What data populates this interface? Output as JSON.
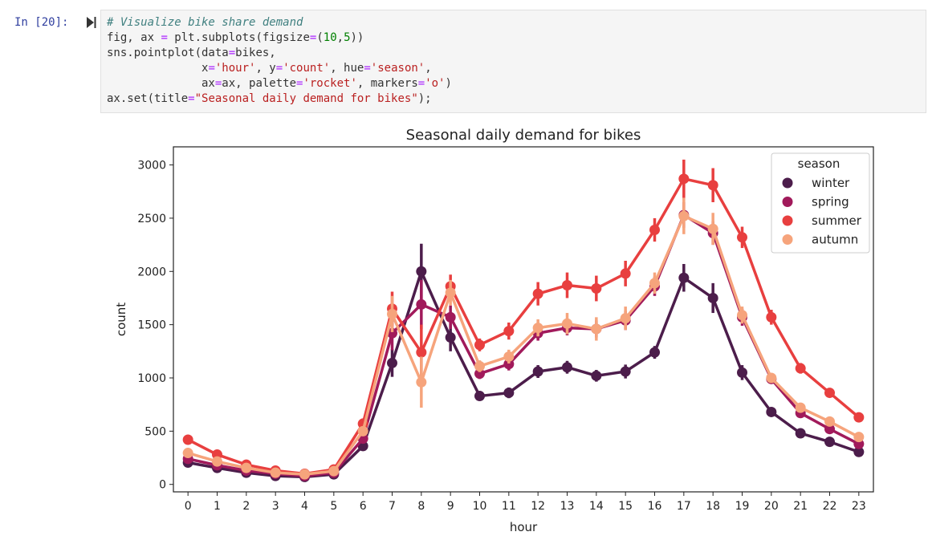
{
  "cell": {
    "prompt": "In [20]:",
    "code_lines": [
      [
        {
          "t": "# Visualize bike share demand",
          "c": "cm"
        }
      ],
      [
        {
          "t": "fig, ax ",
          "c": "txt"
        },
        {
          "t": "=",
          "c": "kw"
        },
        {
          "t": " plt.subplots(figsize",
          "c": "txt"
        },
        {
          "t": "=",
          "c": "kw"
        },
        {
          "t": "(",
          "c": "txt"
        },
        {
          "t": "10",
          "c": "num"
        },
        {
          "t": ",",
          "c": "txt"
        },
        {
          "t": "5",
          "c": "num"
        },
        {
          "t": "))",
          "c": "txt"
        }
      ],
      [
        {
          "t": "sns.pointplot(data",
          "c": "txt"
        },
        {
          "t": "=",
          "c": "kw"
        },
        {
          "t": "bikes,",
          "c": "txt"
        }
      ],
      [
        {
          "t": "              x",
          "c": "txt"
        },
        {
          "t": "=",
          "c": "kw"
        },
        {
          "t": "'hour'",
          "c": "str"
        },
        {
          "t": ", y",
          "c": "txt"
        },
        {
          "t": "=",
          "c": "kw"
        },
        {
          "t": "'count'",
          "c": "str"
        },
        {
          "t": ", hue",
          "c": "txt"
        },
        {
          "t": "=",
          "c": "kw"
        },
        {
          "t": "'season'",
          "c": "str"
        },
        {
          "t": ",",
          "c": "txt"
        }
      ],
      [
        {
          "t": "              ax",
          "c": "txt"
        },
        {
          "t": "=",
          "c": "kw"
        },
        {
          "t": "ax, palette",
          "c": "txt"
        },
        {
          "t": "=",
          "c": "kw"
        },
        {
          "t": "'rocket'",
          "c": "str"
        },
        {
          "t": ", markers",
          "c": "txt"
        },
        {
          "t": "=",
          "c": "kw"
        },
        {
          "t": "'o'",
          "c": "str"
        },
        {
          "t": ")",
          "c": "txt"
        }
      ],
      [
        {
          "t": "ax.set(title",
          "c": "txt"
        },
        {
          "t": "=",
          "c": "kw"
        },
        {
          "t": "\"Seasonal daily demand for bikes\"",
          "c": "str"
        },
        {
          "t": ");",
          "c": "txt"
        }
      ]
    ]
  },
  "chart_data": {
    "type": "line",
    "title": "Seasonal daily demand for bikes",
    "xlabel": "hour",
    "ylabel": "count",
    "ylim": [
      -70,
      3170
    ],
    "yticks": [
      0,
      500,
      1000,
      1500,
      2000,
      2500,
      3000
    ],
    "categories": [
      "0",
      "1",
      "2",
      "3",
      "4",
      "5",
      "6",
      "7",
      "8",
      "9",
      "10",
      "11",
      "12",
      "13",
      "14",
      "15",
      "16",
      "17",
      "18",
      "19",
      "20",
      "21",
      "22",
      "23"
    ],
    "legend": {
      "title": "season",
      "position": "top-right"
    },
    "grid": false,
    "series": [
      {
        "name": "winter",
        "color": "#4c1d4b",
        "values": [
          205,
          155,
          110,
          80,
          70,
          95,
          360,
          1140,
          2000,
          1380,
          830,
          860,
          1060,
          1100,
          1020,
          1060,
          1240,
          1940,
          1750,
          1050,
          680,
          480,
          400,
          305
        ],
        "errors": [
          25,
          20,
          18,
          12,
          12,
          15,
          30,
          130,
          260,
          130,
          45,
          50,
          60,
          60,
          55,
          65,
          60,
          130,
          140,
          70,
          35,
          30,
          25,
          25
        ]
      },
      {
        "name": "spring",
        "color": "#a11a5b",
        "values": [
          240,
          180,
          130,
          100,
          80,
          110,
          430,
          1420,
          1690,
          1570,
          1040,
          1130,
          1420,
          1470,
          1460,
          1540,
          1860,
          2530,
          2360,
          1570,
          990,
          670,
          520,
          380
        ],
        "errors": [
          28,
          22,
          18,
          14,
          12,
          16,
          40,
          160,
          230,
          110,
          50,
          60,
          70,
          70,
          80,
          90,
          90,
          120,
          110,
          80,
          40,
          35,
          30,
          28
        ]
      },
      {
        "name": "summer",
        "color": "#e83f3f",
        "values": [
          420,
          280,
          185,
          130,
          100,
          140,
          570,
          1650,
          1240,
          1860,
          1310,
          1440,
          1790,
          1870,
          1840,
          1980,
          2390,
          2870,
          2810,
          2320,
          1570,
          1090,
          860,
          630
        ],
        "errors": [
          30,
          25,
          20,
          15,
          14,
          20,
          50,
          160,
          260,
          110,
          60,
          80,
          110,
          120,
          120,
          120,
          110,
          180,
          160,
          100,
          70,
          50,
          40,
          35
        ]
      },
      {
        "name": "autumn",
        "color": "#f6a47c",
        "values": [
          295,
          215,
          155,
          110,
          95,
          125,
          500,
          1600,
          960,
          1800,
          1110,
          1200,
          1470,
          1510,
          1460,
          1560,
          1890,
          2520,
          2400,
          1590,
          1000,
          720,
          590,
          445
        ],
        "errors": [
          25,
          22,
          18,
          14,
          12,
          16,
          45,
          170,
          240,
          120,
          55,
          65,
          80,
          100,
          110,
          110,
          100,
          170,
          150,
          80,
          45,
          40,
          35,
          30
        ]
      }
    ]
  }
}
